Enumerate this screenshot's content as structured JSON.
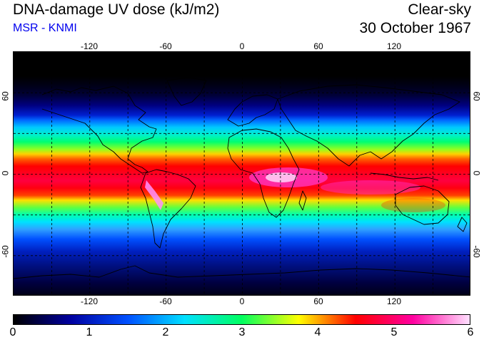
{
  "header": {
    "title": "DNA-damage UV dose (kJ/m2)",
    "credit": "MSR - KNMI",
    "sky_condition": "Clear-sky",
    "date": "30 October 1967"
  },
  "map": {
    "projection": "equirectangular",
    "lon_range": [
      -180,
      180
    ],
    "lat_range": [
      -90,
      90
    ],
    "lon_ticks": [
      "-120",
      "-60",
      "0",
      "60",
      "120"
    ],
    "lat_ticks_left": [
      "60",
      "0",
      "-60"
    ],
    "lat_ticks_right": [
      "60",
      "0",
      "-60"
    ],
    "gridlines": "dashed"
  },
  "colorbar": {
    "min": 0,
    "max": 6,
    "labels": [
      "0",
      "1",
      "2",
      "3",
      "4",
      "5",
      "6"
    ],
    "colors": [
      "#000000",
      "#0000a0",
      "#0050ff",
      "#00e0ff",
      "#00ff60",
      "#ffff00",
      "#ff0000",
      "#ff00a0",
      "#ffe0ff"
    ]
  }
}
